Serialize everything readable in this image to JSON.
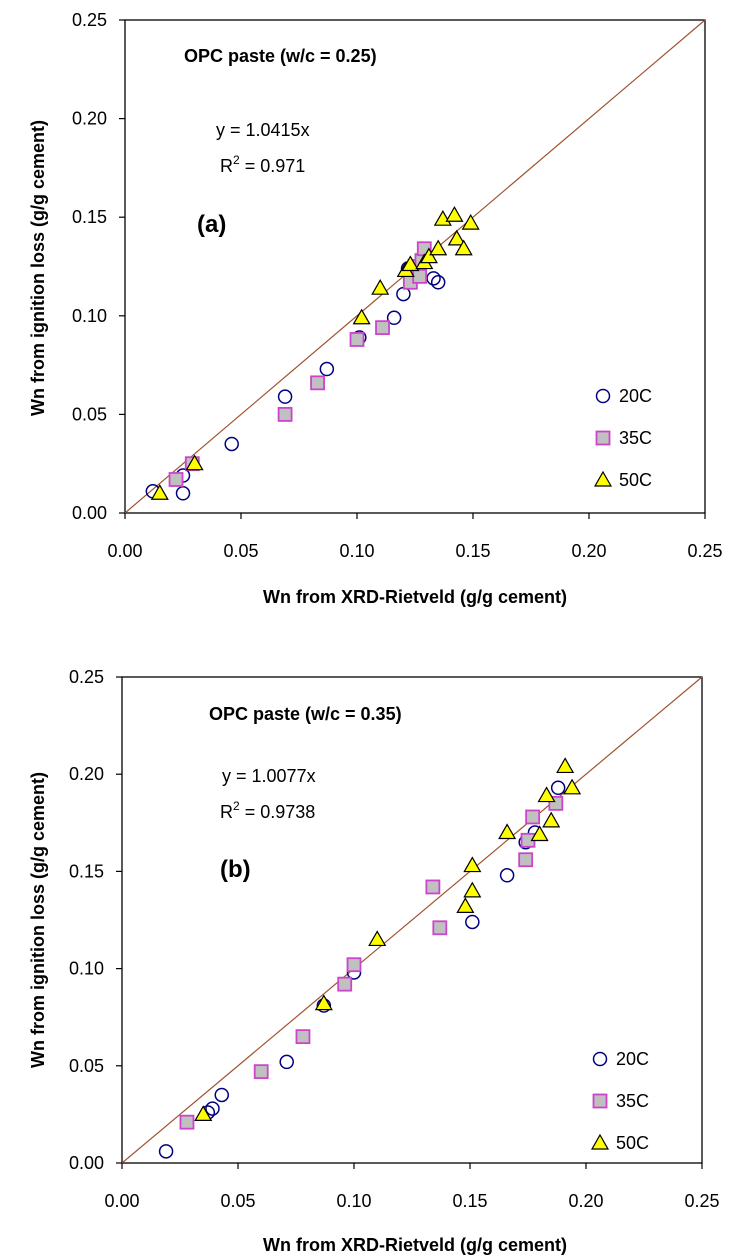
{
  "chart_data": [
    {
      "type": "scatter",
      "panel_label": "(a)",
      "title": "OPC paste (w/c = 0.25)",
      "equation": "y = 1.0415x",
      "r2_prefix": "R",
      "r2_sup": "2",
      "r2_value": " = 0.971",
      "xlabel": "Wn from XRD-Rietveld (g/g cement)",
      "ylabel": "Wn from ignition loss (g/g cement)",
      "xlim": [
        0,
        0.25
      ],
      "ylim": [
        0,
        0.25
      ],
      "xticks": [
        "0.00",
        "0.05",
        "0.10",
        "0.15",
        "0.20",
        "0.25"
      ],
      "yticks": [
        "0.00",
        "0.05",
        "0.10",
        "0.15",
        "0.20",
        "0.25"
      ],
      "grid": false,
      "legend_position": "bottom-right",
      "line": {
        "type": "y=x",
        "color": "#a0522d"
      },
      "series": [
        {
          "name": "20C",
          "marker": "circle",
          "color": "#000080",
          "x": [
            0.012,
            0.025,
            0.025,
            0.046,
            0.069,
            0.087,
            0.101,
            0.116,
            0.12,
            0.122,
            0.133,
            0.135
          ],
          "y": [
            0.011,
            0.01,
            0.019,
            0.035,
            0.059,
            0.073,
            0.089,
            0.099,
            0.111,
            0.124,
            0.119,
            0.117
          ]
        },
        {
          "name": "35C",
          "marker": "square",
          "color": "#cc44cc",
          "x": [
            0.022,
            0.029,
            0.069,
            0.083,
            0.1,
            0.111,
            0.123,
            0.125,
            0.127,
            0.128,
            0.129
          ],
          "y": [
            0.017,
            0.025,
            0.05,
            0.066,
            0.088,
            0.094,
            0.117,
            0.125,
            0.12,
            0.128,
            0.134
          ]
        },
        {
          "name": "50C",
          "marker": "triangle",
          "color": "#ffff00",
          "x": [
            0.015,
            0.03,
            0.102,
            0.11,
            0.121,
            0.123,
            0.129,
            0.131,
            0.135,
            0.137,
            0.142,
            0.143,
            0.146,
            0.149
          ],
          "y": [
            0.01,
            0.025,
            0.099,
            0.114,
            0.123,
            0.126,
            0.127,
            0.13,
            0.134,
            0.149,
            0.151,
            0.139,
            0.134,
            0.147
          ]
        }
      ]
    },
    {
      "type": "scatter",
      "panel_label": "(b)",
      "title": "OPC paste (w/c = 0.35)",
      "equation": "y = 1.0077x",
      "r2_prefix": "R",
      "r2_sup": "2",
      "r2_value": " = 0.9738",
      "xlabel": "Wn from XRD-Rietveld (g/g cement)",
      "ylabel": "Wn from ignition loss (g/g cement)",
      "xlim": [
        0,
        0.25
      ],
      "ylim": [
        0,
        0.25
      ],
      "xticks": [
        "0.00",
        "0.05",
        "0.10",
        "0.15",
        "0.20",
        "0.25"
      ],
      "yticks": [
        "0.00",
        "0.05",
        "0.10",
        "0.15",
        "0.20",
        "0.25"
      ],
      "grid": false,
      "legend_position": "bottom-right",
      "line": {
        "type": "y=x",
        "color": "#a0522d"
      },
      "series": [
        {
          "name": "20C",
          "marker": "circle",
          "color": "#000080",
          "x": [
            0.019,
            0.037,
            0.039,
            0.043,
            0.071,
            0.087,
            0.1,
            0.151,
            0.166,
            0.174,
            0.178,
            0.188
          ],
          "y": [
            0.006,
            0.026,
            0.028,
            0.035,
            0.052,
            0.081,
            0.098,
            0.124,
            0.148,
            0.165,
            0.17,
            0.193
          ]
        },
        {
          "name": "35C",
          "marker": "square",
          "color": "#cc44cc",
          "x": [
            0.028,
            0.06,
            0.078,
            0.096,
            0.1,
            0.134,
            0.137,
            0.174,
            0.175,
            0.177,
            0.187
          ],
          "y": [
            0.021,
            0.047,
            0.065,
            0.092,
            0.102,
            0.142,
            0.121,
            0.156,
            0.166,
            0.178,
            0.185
          ]
        },
        {
          "name": "50C",
          "marker": "triangle",
          "color": "#ffff00",
          "x": [
            0.035,
            0.087,
            0.11,
            0.148,
            0.151,
            0.151,
            0.166,
            0.18,
            0.183,
            0.185,
            0.191,
            0.194
          ],
          "y": [
            0.025,
            0.082,
            0.115,
            0.132,
            0.14,
            0.153,
            0.17,
            0.169,
            0.189,
            0.176,
            0.204,
            0.193
          ]
        }
      ]
    }
  ]
}
